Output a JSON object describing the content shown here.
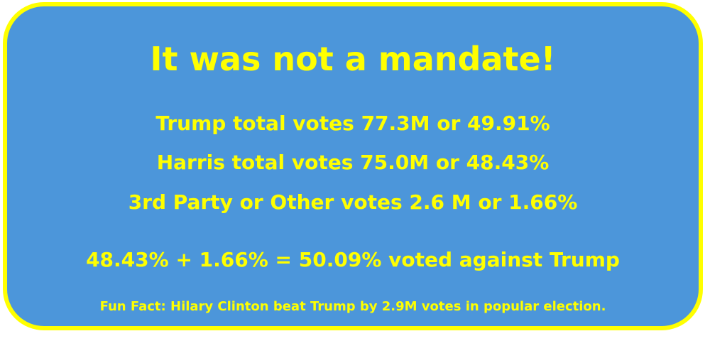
{
  "colors": {
    "background": "#4C96DA",
    "border": "#FFFF00",
    "text": "#FFFF00"
  },
  "headline": "It was not a mandate!",
  "stats": [
    "Trump total votes 77.3M or 49.91%",
    "Harris total votes 75.0M or 48.43%",
    "3rd Party or Other votes 2.6 M or 1.66%"
  ],
  "summary": "48.43% + 1.66% = 50.09% voted against Trump",
  "fun_fact": "Fun Fact: Hilary Clinton beat Trump by 2.9M votes in popular election."
}
